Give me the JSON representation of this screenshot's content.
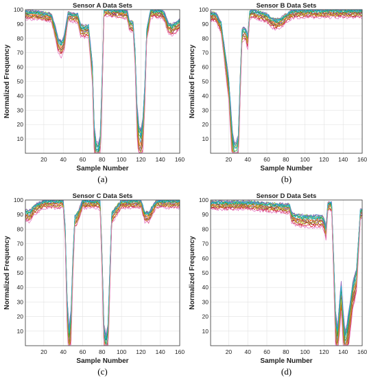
{
  "chart_data": [
    {
      "type": "line",
      "title": "Sensor A Data Sets",
      "xlabel": "Sample Number",
      "ylabel": "Normalized Frequency",
      "caption": "(a)",
      "xlim": [
        1,
        160
      ],
      "ylim": [
        0,
        100
      ],
      "xticks": [
        20,
        40,
        60,
        80,
        100,
        120,
        140,
        160
      ],
      "yticks": [
        10,
        20,
        30,
        40,
        50,
        60,
        70,
        80,
        90,
        100
      ],
      "grid": true,
      "base_profile": {
        "x": [
          1,
          10,
          20,
          28,
          32,
          35,
          38,
          41,
          45,
          55,
          58,
          62,
          66,
          70,
          72,
          74,
          76,
          78,
          80,
          82,
          85,
          90,
          100,
          106,
          108,
          112,
          114,
          116,
          118,
          120,
          122,
          124,
          126,
          130,
          140,
          144,
          148,
          152,
          156,
          160
        ],
        "y": [
          98,
          98,
          97,
          96,
          86,
          78,
          76,
          80,
          97,
          96,
          88,
          87,
          88,
          60,
          15,
          3,
          2,
          8,
          50,
          100,
          100,
          99,
          99,
          98,
          91,
          90,
          70,
          30,
          15,
          12,
          20,
          45,
          85,
          99,
          99,
          97,
          90,
          88,
          90,
          92
        ]
      },
      "series": [
        {
          "offset": 0,
          "color": "#0072bd"
        },
        {
          "offset": -3,
          "color": "#d95319"
        },
        {
          "offset": 1,
          "color": "#edb120"
        },
        {
          "offset": -6,
          "color": "#7e2f8e"
        },
        {
          "offset": 2,
          "color": "#77ac30"
        },
        {
          "offset": -2,
          "color": "#4dbeee"
        },
        {
          "offset": -8,
          "color": "#a2142f"
        },
        {
          "offset": 1.5,
          "color": "#1f77b4"
        },
        {
          "offset": -4,
          "color": "#ff7f0e"
        },
        {
          "offset": -1,
          "color": "#2ca02c"
        },
        {
          "offset": -10,
          "color": "#d62728"
        },
        {
          "offset": 2.5,
          "color": "#9467bd"
        },
        {
          "offset": -5,
          "color": "#8c564b"
        },
        {
          "offset": 0.5,
          "color": "#17becf"
        },
        {
          "offset": -7,
          "color": "#bcbd22"
        },
        {
          "offset": -12,
          "color": "#e377c2"
        }
      ]
    },
    {
      "type": "line",
      "title": "Sensor B Data Sets",
      "xlabel": "Sample Number",
      "ylabel": "Normalized Frequency",
      "caption": "(b)",
      "xlim": [
        1,
        160
      ],
      "ylim": [
        0,
        100
      ],
      "xticks": [
        20,
        40,
        60,
        80,
        100,
        120,
        140,
        160
      ],
      "yticks": [
        10,
        20,
        30,
        40,
        50,
        60,
        70,
        80,
        90,
        100
      ],
      "grid": true,
      "base_profile": {
        "x": [
          1,
          5,
          8,
          10,
          12,
          15,
          18,
          20,
          22,
          24,
          26,
          28,
          30,
          32,
          34,
          36,
          38,
          40,
          42,
          44,
          50,
          60,
          65,
          70,
          75,
          80,
          85,
          90,
          100,
          120,
          140,
          160
        ],
        "y": [
          97,
          97,
          95,
          92,
          90,
          75,
          60,
          50,
          30,
          10,
          3,
          3,
          8,
          50,
          85,
          86,
          85,
          80,
          98,
          99,
          98,
          96,
          93,
          92,
          93,
          96,
          98,
          99,
          99,
          99,
          99,
          99
        ]
      },
      "series": [
        {
          "offset": 0,
          "color": "#0072bd"
        },
        {
          "offset": -3,
          "color": "#d95319"
        },
        {
          "offset": 1,
          "color": "#edb120"
        },
        {
          "offset": -6,
          "color": "#7e2f8e"
        },
        {
          "offset": 2,
          "color": "#77ac30"
        },
        {
          "offset": -2,
          "color": "#4dbeee"
        },
        {
          "offset": -8,
          "color": "#a2142f"
        },
        {
          "offset": 1.5,
          "color": "#1f77b4"
        },
        {
          "offset": -4,
          "color": "#ff7f0e"
        },
        {
          "offset": -1,
          "color": "#2ca02c"
        },
        {
          "offset": -10,
          "color": "#d62728"
        },
        {
          "offset": 2.5,
          "color": "#9467bd"
        },
        {
          "offset": -5,
          "color": "#8c564b"
        },
        {
          "offset": 0.5,
          "color": "#17becf"
        },
        {
          "offset": -7,
          "color": "#bcbd22"
        },
        {
          "offset": -12,
          "color": "#e377c2"
        }
      ]
    },
    {
      "type": "line",
      "title": "Sensor C Data Sets",
      "xlabel": "Sample Number",
      "ylabel": "Normalized Frequency",
      "caption": "(c)",
      "xlim": [
        1,
        160
      ],
      "ylim": [
        0,
        100
      ],
      "xticks": [
        20,
        40,
        60,
        80,
        100,
        120,
        140,
        160
      ],
      "yticks": [
        10,
        20,
        30,
        40,
        50,
        60,
        70,
        80,
        90,
        100
      ],
      "grid": true,
      "base_profile": {
        "x": [
          1,
          5,
          10,
          15,
          20,
          40,
          42,
          44,
          46,
          48,
          50,
          52,
          54,
          56,
          60,
          75,
          78,
          80,
          82,
          84,
          86,
          88,
          90,
          92,
          100,
          120,
          124,
          128,
          132,
          136,
          140,
          160
        ],
        "y": [
          92,
          91,
          95,
          97,
          99,
          99,
          80,
          30,
          8,
          20,
          60,
          88,
          89,
          92,
          99,
          99,
          98,
          60,
          10,
          3,
          10,
          50,
          90,
          92,
          99,
          99,
          91,
          90,
          95,
          99,
          99,
          99
        ]
      },
      "series": [
        {
          "offset": 0,
          "color": "#0072bd"
        },
        {
          "offset": -3,
          "color": "#d95319"
        },
        {
          "offset": 1,
          "color": "#edb120"
        },
        {
          "offset": -6,
          "color": "#7e2f8e"
        },
        {
          "offset": 2,
          "color": "#77ac30"
        },
        {
          "offset": -2,
          "color": "#4dbeee"
        },
        {
          "offset": -8,
          "color": "#a2142f"
        },
        {
          "offset": 1.5,
          "color": "#1f77b4"
        },
        {
          "offset": -4,
          "color": "#ff7f0e"
        },
        {
          "offset": -1,
          "color": "#2ca02c"
        },
        {
          "offset": -10,
          "color": "#d62728"
        },
        {
          "offset": 2.5,
          "color": "#9467bd"
        },
        {
          "offset": -5,
          "color": "#8c564b"
        },
        {
          "offset": 0.5,
          "color": "#17becf"
        },
        {
          "offset": -7,
          "color": "#bcbd22"
        },
        {
          "offset": -12,
          "color": "#e377c2"
        }
      ]
    },
    {
      "type": "line",
      "title": "Sensor D Data Sets",
      "xlabel": "Sample Number",
      "ylabel": "Normalized Frequency",
      "caption": "(d)",
      "xlim": [
        1,
        160
      ],
      "ylim": [
        0,
        100
      ],
      "xticks": [
        20,
        40,
        60,
        80,
        100,
        120,
        140,
        160
      ],
      "yticks": [
        10,
        20,
        30,
        40,
        50,
        60,
        70,
        80,
        90,
        100
      ],
      "grid": true,
      "base_profile": {
        "x": [
          1,
          20,
          40,
          60,
          80,
          84,
          86,
          90,
          100,
          110,
          118,
          120,
          122,
          124,
          126,
          128,
          130,
          132,
          134,
          136,
          138,
          140,
          142,
          144,
          146,
          150,
          154,
          156,
          158,
          160
        ],
        "y": [
          98,
          98,
          98,
          97,
          96,
          96,
          90,
          89,
          88,
          88,
          88,
          86,
          80,
          97,
          98,
          97,
          60,
          20,
          8,
          25,
          40,
          20,
          5,
          10,
          20,
          40,
          50,
          70,
          92,
          93
        ]
      },
      "series": [
        {
          "offset": 0,
          "color": "#0072bd"
        },
        {
          "offset": -3,
          "color": "#d95319"
        },
        {
          "offset": 1,
          "color": "#edb120"
        },
        {
          "offset": -6,
          "color": "#7e2f8e"
        },
        {
          "offset": 2,
          "color": "#77ac30"
        },
        {
          "offset": -2,
          "color": "#4dbeee"
        },
        {
          "offset": -8,
          "color": "#a2142f"
        },
        {
          "offset": 1.5,
          "color": "#1f77b4"
        },
        {
          "offset": -4,
          "color": "#ff7f0e"
        },
        {
          "offset": -1,
          "color": "#2ca02c"
        },
        {
          "offset": -10,
          "color": "#d62728"
        },
        {
          "offset": 2.5,
          "color": "#9467bd"
        },
        {
          "offset": -5,
          "color": "#8c564b"
        },
        {
          "offset": 0.5,
          "color": "#17becf"
        },
        {
          "offset": -7,
          "color": "#bcbd22"
        },
        {
          "offset": -12,
          "color": "#e377c2"
        }
      ]
    }
  ]
}
